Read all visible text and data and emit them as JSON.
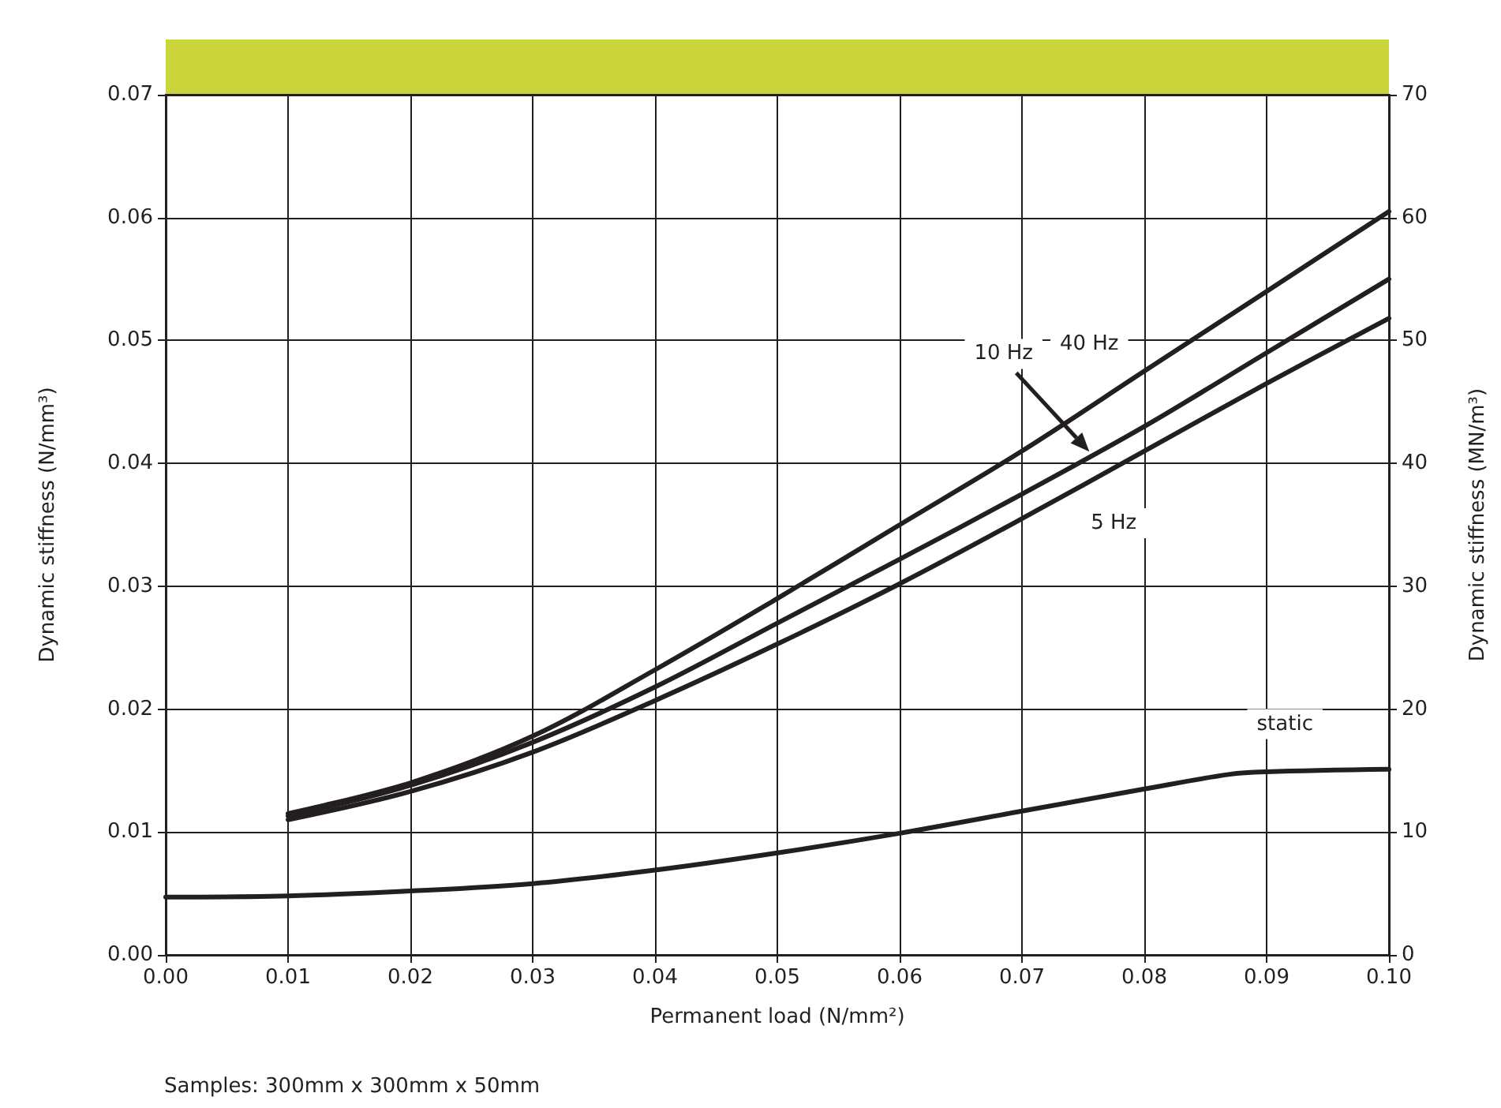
{
  "chart_data": {
    "type": "line",
    "xlabel": "Permanent load (N/mm²)",
    "ylabel": "Dynamic stiffness (N/mm³)",
    "y2label": "Dynamic stiffness (MN/m³)",
    "series": [
      {
        "color": "#231f20",
        "x": [
          0.01,
          0.02,
          0.03,
          0.04,
          0.05,
          0.06,
          0.07,
          0.08,
          0.09,
          0.1
        ],
        "values": [
          0.0115,
          0.014,
          0.0178,
          0.0232,
          0.029,
          0.035,
          0.041,
          0.0475,
          0.054,
          0.0605
        ]
      },
      {
        "color": "#231f20",
        "x": [
          0.01,
          0.02,
          0.03,
          0.04,
          0.05,
          0.06,
          0.07,
          0.08,
          0.09,
          0.1
        ],
        "values": [
          0.0113,
          0.0138,
          0.0173,
          0.0218,
          0.027,
          0.0322,
          0.0375,
          0.043,
          0.049,
          0.055
        ]
      },
      {
        "color": "#231f20",
        "x": [
          0.01,
          0.02,
          0.03,
          0.04,
          0.05,
          0.06,
          0.07,
          0.08,
          0.09,
          0.1
        ],
        "values": [
          0.011,
          0.0133,
          0.0165,
          0.0207,
          0.0253,
          0.0302,
          0.0355,
          0.041,
          0.0465,
          0.0518
        ]
      },
      {
        "color": "#231f20",
        "x": [
          0,
          0.01,
          0.02,
          0.03,
          0.04,
          0.05,
          0.06,
          0.07,
          0.08,
          0.087,
          0.09,
          0.1
        ],
        "values": [
          0.0047,
          0.0048,
          0.0052,
          0.0058,
          0.0069,
          0.0083,
          0.0099,
          0.0117,
          0.0135,
          0.0147,
          0.0149,
          0.0151
        ]
      }
    ],
    "xlim": [
      0,
      0.1
    ],
    "xticks": [
      {
        "value": 0,
        "label": "0.00"
      },
      {
        "value": 0.01,
        "label": "0.01"
      },
      {
        "value": 0.02,
        "label": "0.02"
      },
      {
        "value": 0.03,
        "label": "0.03"
      },
      {
        "value": 0.04,
        "label": "0.04"
      },
      {
        "value": 0.05,
        "label": "0.05"
      },
      {
        "value": 0.06,
        "label": "0.06"
      },
      {
        "value": 0.07,
        "label": "0.07"
      },
      {
        "value": 0.08,
        "label": "0.08"
      },
      {
        "value": 0.09,
        "label": "0.09"
      },
      {
        "value": 0.1,
        "label": "0.10"
      }
    ],
    "ylim": [
      0,
      0.07
    ],
    "yticks": [
      {
        "value": 0,
        "label": "0.00"
      },
      {
        "value": 0.01,
        "label": "0.01"
      },
      {
        "value": 0.02,
        "label": "0.02"
      },
      {
        "value": 0.03,
        "label": "0.03"
      },
      {
        "value": 0.04,
        "label": "0.04"
      },
      {
        "value": 0.05,
        "label": "0.05"
      },
      {
        "value": 0.06,
        "label": "0.06"
      },
      {
        "value": 0.07,
        "label": "0.07"
      }
    ],
    "y2lim": [
      0,
      70
    ],
    "y2ticks": [
      0,
      10,
      20,
      30,
      40,
      50,
      60,
      70
    ],
    "grid": true,
    "marker": "none",
    "line_style": "solid",
    "annotations": [
      "40 Hz",
      "10 Hz",
      "5 Hz",
      "static",
      "Samples: 300mm x 300mm x 50mm"
    ]
  }
}
